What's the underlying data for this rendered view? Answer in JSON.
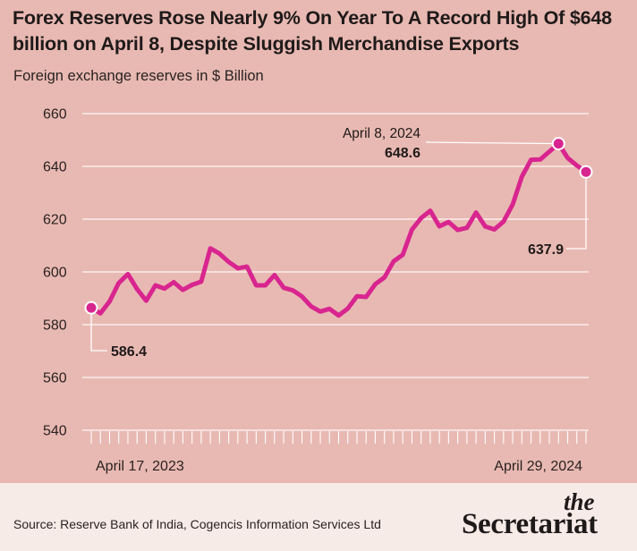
{
  "header": {
    "title": "Forex Reserves Rose Nearly 9% On Year To A Record High Of $648 billion on April 8, Despite Sluggish Merchandise Exports",
    "subtitle": "Foreign exchange reserves in $ Billion"
  },
  "footer": {
    "source": "Source: Reserve Bank of India, Cogencis Information Services Ltd",
    "logo_top": "the",
    "logo_bottom": "Secretariat"
  },
  "colors": {
    "background": "#e8b9b2",
    "line": "#d8258f",
    "footer": "#f7ebe8",
    "text": "#1f1a1a"
  },
  "chart_data": {
    "type": "line",
    "title": "Forex Reserves Rose Nearly 9% On Year To A Record High Of $648 billion on April 8, Despite Sluggish Merchandise Exports",
    "ylabel": "Foreign exchange reserves in $ Billion",
    "ylim": [
      540,
      660
    ],
    "yticks": [
      540,
      560,
      580,
      600,
      620,
      640,
      660
    ],
    "grid": true,
    "x_start_label": "April 17, 2023",
    "x_end_label": "April 29, 2024",
    "series": [
      {
        "values": [
          586.4,
          584.3,
          588.8,
          595.8,
          599.2,
          593.5,
          589.1,
          594.9,
          593.7,
          596.1,
          593.2,
          595.1,
          596.3,
          608.9,
          606.9,
          603.8,
          601.4,
          602.0,
          594.9,
          594.9,
          598.8,
          594.0,
          593.0,
          590.7,
          586.9,
          585.0,
          586.0,
          583.5,
          586.1,
          590.8,
          590.5,
          595.4,
          597.9,
          604.0,
          606.5,
          616.0,
          620.4,
          623.2,
          617.3,
          618.9,
          615.9,
          616.7,
          622.5,
          617.2,
          616.1,
          619.1,
          625.6,
          636.1,
          642.5,
          642.6,
          645.6,
          648.6,
          643.2,
          640.3,
          637.9
        ]
      }
    ],
    "annotations": [
      {
        "label": "April 8, 2024",
        "value": "648.6"
      },
      {
        "value": "586.4"
      },
      {
        "value": "637.9"
      }
    ]
  }
}
